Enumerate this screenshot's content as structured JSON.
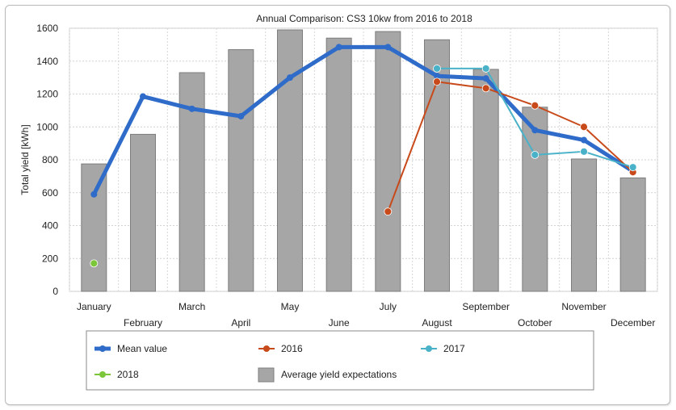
{
  "chart_data": {
    "type": "bar",
    "title": "Annual Comparison: CS3 10kw from 2016 to 2018",
    "xlabel": "",
    "ylabel": "Total yield [kWh]",
    "ylim": [
      0,
      1600
    ],
    "yticks": [
      0,
      200,
      400,
      600,
      800,
      1000,
      1200,
      1400,
      1600
    ],
    "grid": true,
    "legend_position": "bottom",
    "categories": [
      "January",
      "February",
      "March",
      "April",
      "May",
      "June",
      "July",
      "August",
      "September",
      "October",
      "November",
      "December"
    ],
    "bars": {
      "name": "Average yield expectations",
      "color": "#a6a6a6",
      "values": [
        775,
        955,
        1330,
        1470,
        1590,
        1540,
        1580,
        1530,
        1350,
        1120,
        805,
        690
      ]
    },
    "series": [
      {
        "name": "Mean value",
        "color": "#2f6bc9",
        "values": [
          590,
          1185,
          1110,
          1065,
          1300,
          1485,
          1485,
          1310,
          1295,
          980,
          920,
          730
        ]
      },
      {
        "name": "2016",
        "color": "#c84a1a",
        "values": [
          null,
          null,
          null,
          null,
          null,
          null,
          485,
          1275,
          1235,
          1130,
          1000,
          725
        ]
      },
      {
        "name": "2017",
        "color": "#4ab2c8",
        "values": [
          null,
          null,
          null,
          null,
          null,
          null,
          null,
          1355,
          1355,
          830,
          850,
          755
        ]
      },
      {
        "name": "2018",
        "color": "#7cc63a",
        "values": [
          170,
          null,
          null,
          null,
          null,
          null,
          null,
          null,
          null,
          null,
          null,
          null
        ]
      }
    ]
  }
}
